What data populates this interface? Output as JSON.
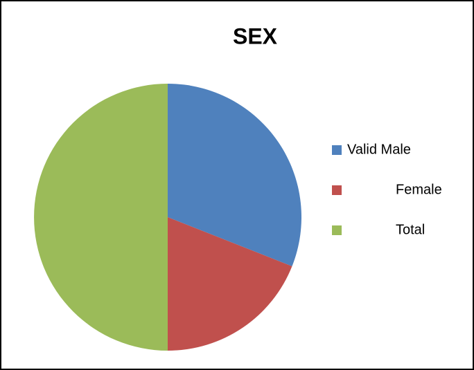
{
  "chart_data": {
    "type": "pie",
    "title": "SEX",
    "categories": [
      "Valid Male",
      "Female",
      "Total"
    ],
    "values": [
      31,
      19,
      50
    ],
    "colors": [
      "#4f81bd",
      "#c0504d",
      "#9bbb59"
    ],
    "legend": "right"
  }
}
